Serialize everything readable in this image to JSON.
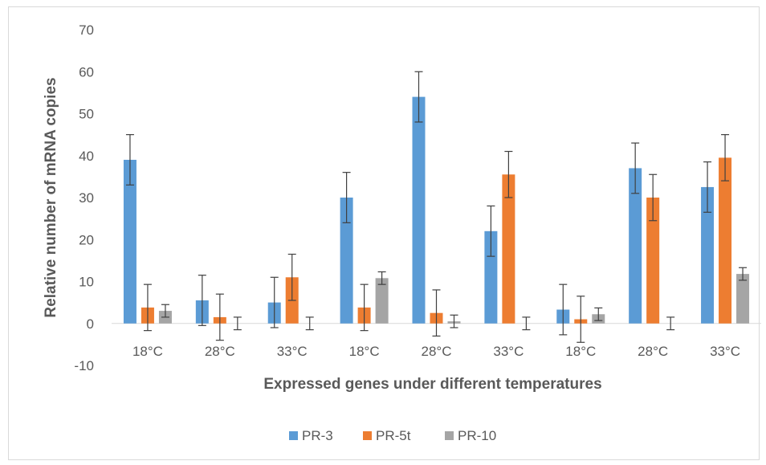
{
  "chart_data": {
    "type": "bar",
    "title": "",
    "xlabel": "Expressed genes under different temperatures",
    "ylabel": "Relative number of mRNA copies",
    "ylim": [
      -10,
      70
    ],
    "yticks": [
      -10,
      0,
      10,
      20,
      30,
      40,
      50,
      60,
      70
    ],
    "grid": false,
    "legend_position": "bottom",
    "categories": [
      "18°C",
      "28°C",
      "33°C",
      "18°C",
      "28°C",
      "33°C",
      "18°C",
      "28°C",
      "33°C"
    ],
    "series": [
      {
        "name": "PR-3",
        "color": "#5b9bd5",
        "values": [
          39,
          5.5,
          5,
          30,
          54,
          22,
          3.3,
          37,
          32.5
        ],
        "errors": [
          6,
          6,
          6,
          6,
          6,
          6,
          6,
          6,
          6
        ]
      },
      {
        "name": "PR-5t",
        "color": "#ed7d31",
        "values": [
          3.8,
          1.5,
          11,
          3.8,
          2.5,
          35.5,
          1,
          30,
          39.5
        ],
        "errors": [
          5.5,
          5.5,
          5.5,
          5.5,
          5.5,
          5.5,
          5.5,
          5.5,
          5.5
        ]
      },
      {
        "name": "PR-10",
        "color": "#a5a5a5",
        "values": [
          3,
          0,
          0,
          10.8,
          0.5,
          0,
          2.2,
          0,
          11.8
        ],
        "errors": [
          1.5,
          1.5,
          1.5,
          1.5,
          1.5,
          1.5,
          1.5,
          1.5,
          1.5
        ]
      }
    ]
  }
}
